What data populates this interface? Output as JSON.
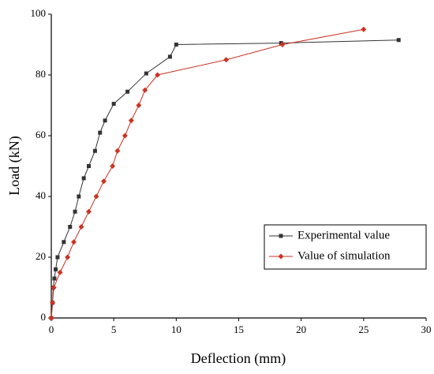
{
  "chart_data": {
    "type": "line",
    "xlabel": "Deflection (mm)",
    "ylabel": "Load (kN)",
    "xlim": [
      0,
      30
    ],
    "xticks": [
      0,
      5,
      10,
      15,
      20,
      25,
      30
    ],
    "ylim": [
      0,
      100
    ],
    "yticks": [
      0,
      20,
      40,
      60,
      80,
      100
    ],
    "grid": false,
    "legend": "lower right",
    "series": [
      {
        "name": "Experimental value",
        "color": "#333333",
        "marker": "square",
        "x": [
          0,
          0.1,
          0.15,
          0.25,
          0.35,
          0.5,
          1.0,
          1.5,
          1.9,
          2.2,
          2.6,
          3.0,
          3.5,
          3.9,
          4.3,
          5.0,
          6.1,
          7.6,
          9.5,
          10.0,
          18.4,
          27.8
        ],
        "values": [
          0,
          5,
          10,
          13,
          16,
          20,
          25,
          30,
          35,
          40,
          46,
          50,
          55,
          61,
          65,
          70.5,
          74.5,
          80.5,
          86,
          90,
          90.5,
          91.5
        ]
      },
      {
        "name": "Value of simulation",
        "color": "#cc3322",
        "marker": "diamond",
        "x": [
          0,
          0.1,
          0.2,
          0.7,
          1.3,
          1.8,
          2.4,
          3.0,
          3.6,
          4.2,
          4.9,
          5.3,
          5.9,
          6.4,
          7.0,
          7.5,
          8.5,
          14.0,
          18.5,
          25.0
        ],
        "values": [
          0,
          5,
          10,
          15,
          20,
          25,
          30,
          35,
          40,
          45,
          50,
          55,
          60,
          65,
          70,
          75,
          80,
          85,
          90,
          95
        ]
      }
    ]
  }
}
